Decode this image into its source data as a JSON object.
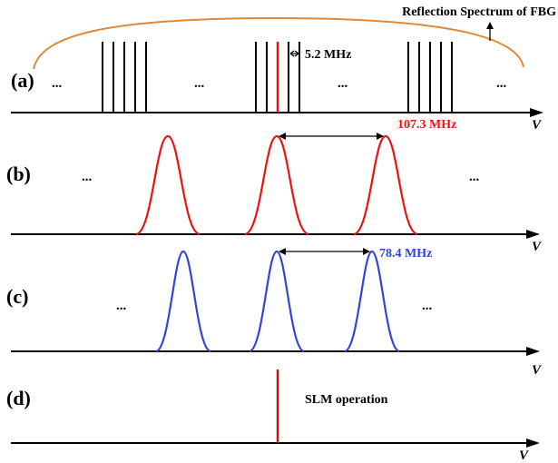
{
  "colors": {
    "envelope": "#e0883a",
    "red": "#ee1111",
    "blue": "#3344dd",
    "black": "#000000"
  },
  "panels": {
    "a": {
      "label": "(a)",
      "fbg_label": "Reflection Spectrum of FBG",
      "spacing_label": "5.2 MHz",
      "ellipsis": "...",
      "axis_symbol": "V"
    },
    "b": {
      "label": "(b)",
      "spacing_label": "107.3 MHz",
      "ellipsis": "...",
      "axis_symbol": "V"
    },
    "c": {
      "label": "(c)",
      "spacing_label": "78.4 MHz",
      "ellipsis": "...",
      "axis_symbol": "V"
    },
    "d": {
      "label": "(d)",
      "operation_label": "SLM operation",
      "axis_symbol": "V"
    }
  }
}
